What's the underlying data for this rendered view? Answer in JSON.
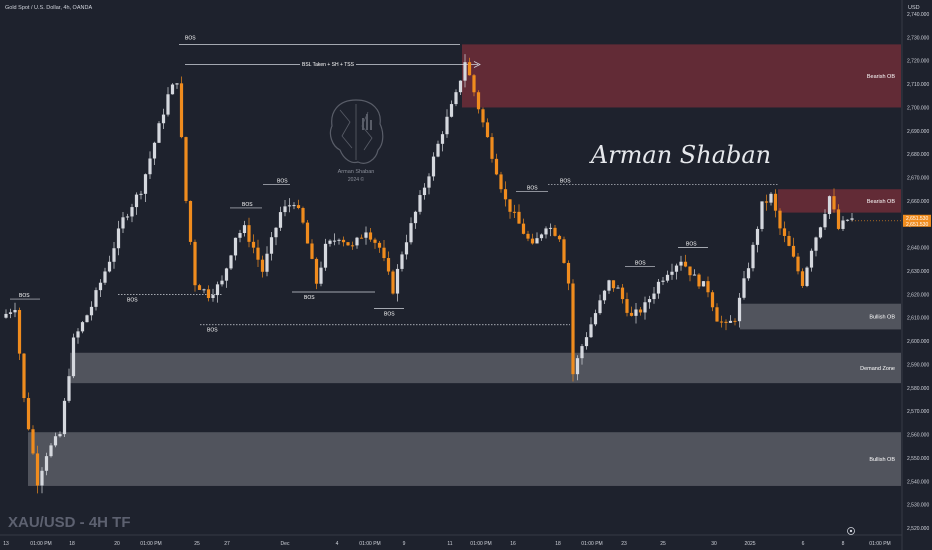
{
  "header": {
    "symbol_title": "Gold Spot / U.S. Dollar, 4h, OANDA",
    "currency": "USD"
  },
  "watermark": {
    "ticker_label": "XAU/USD - 4H TF",
    "signature": "Arman Shaban",
    "logo_text_line1": "Arman Shaban",
    "logo_text_line2": "2024 ©"
  },
  "price_axis": {
    "ticks": [
      2740,
      2730,
      2720,
      2710,
      2700,
      2690,
      2680,
      2670,
      2660,
      2650,
      2640,
      2630,
      2620,
      2610,
      2600,
      2590,
      2580,
      2570,
      2560,
      2550,
      2540,
      2530,
      2520
    ],
    "ylim": [
      2517,
      2746
    ],
    "current_price_label": "2,651.530",
    "current_price_sublabel": "2,651.530",
    "current_price": 2651.5
  },
  "time_axis": {
    "labels": [
      "13",
      "01:00 PM",
      "18",
      "20",
      "01:00 PM",
      "25",
      "27",
      "Dec",
      "4",
      "01:00 PM",
      "9",
      "11",
      "01:00 PM",
      "16",
      "18",
      "01:00 PM",
      "23",
      "25",
      "30",
      "2025",
      "6",
      "8",
      "01:00 PM"
    ]
  },
  "colors": {
    "background": "#1e222d",
    "bull": "#d5d8de",
    "bear": "#f08c1e",
    "supply": "#6e2d38",
    "demand": "#5a5d66",
    "text": "#d1d4dc",
    "current": "#f08c1e"
  },
  "chart_data": {
    "type": "candlestick",
    "title": "Gold Spot / U.S. Dollar, 4h, OANDA",
    "ylabel": "USD",
    "ylim": [
      2517,
      2746
    ],
    "path_keypoints": [
      [
        0,
        2610
      ],
      [
        3,
        2615
      ],
      [
        5,
        2575
      ],
      [
        8,
        2540
      ],
      [
        10,
        2552
      ],
      [
        13,
        2560
      ],
      [
        16,
        2600
      ],
      [
        20,
        2615
      ],
      [
        24,
        2635
      ],
      [
        27,
        2652
      ],
      [
        31,
        2665
      ],
      [
        34,
        2685
      ],
      [
        37,
        2705
      ],
      [
        39,
        2712
      ],
      [
        41,
        2660
      ],
      [
        43,
        2625
      ],
      [
        46,
        2620
      ],
      [
        49,
        2625
      ],
      [
        52,
        2645
      ],
      [
        54,
        2648
      ],
      [
        56,
        2640
      ],
      [
        58,
        2630
      ],
      [
        62,
        2655
      ],
      [
        65,
        2660
      ],
      [
        67,
        2650
      ],
      [
        70,
        2625
      ],
      [
        72,
        2640
      ],
      [
        75,
        2645
      ],
      [
        78,
        2640
      ],
      [
        81,
        2648
      ],
      [
        84,
        2640
      ],
      [
        87,
        2622
      ],
      [
        89,
        2638
      ],
      [
        92,
        2655
      ],
      [
        95,
        2672
      ],
      [
        98,
        2690
      ],
      [
        101,
        2705
      ],
      [
        103,
        2720
      ],
      [
        106,
        2700
      ],
      [
        109,
        2680
      ],
      [
        112,
        2660
      ],
      [
        115,
        2650
      ],
      [
        118,
        2640
      ],
      [
        121,
        2650
      ],
      [
        124,
        2645
      ],
      [
        126,
        2625
      ],
      [
        127,
        2586
      ],
      [
        129,
        2598
      ],
      [
        132,
        2612
      ],
      [
        135,
        2625
      ],
      [
        137,
        2622
      ],
      [
        140,
        2610
      ],
      [
        143,
        2615
      ],
      [
        146,
        2625
      ],
      [
        148,
        2630
      ],
      [
        151,
        2635
      ],
      [
        154,
        2627
      ],
      [
        157,
        2622
      ],
      [
        159,
        2610
      ],
      [
        161,
        2606
      ],
      [
        163,
        2610
      ],
      [
        165,
        2625
      ],
      [
        167,
        2640
      ],
      [
        169,
        2658
      ],
      [
        171,
        2662
      ],
      [
        173,
        2648
      ],
      [
        175,
        2640
      ],
      [
        178,
        2625
      ],
      [
        180,
        2640
      ],
      [
        182,
        2650
      ],
      [
        184,
        2662
      ],
      [
        186,
        2648
      ],
      [
        188,
        2652
      ]
    ],
    "annotations": {
      "bos_labels": [
        "BOS",
        "BOS",
        "BOS",
        "BOS",
        "BOS",
        "BOS",
        "BOS",
        "BOS",
        "BOS",
        "BOS",
        "BOS",
        "BOS"
      ],
      "bsl_label": "BSL Taken + SH + TSS",
      "zones": [
        {
          "label": "Bearish OB",
          "kind": "supply",
          "from": 2700,
          "to": 2727
        },
        {
          "label": "Bearish OB",
          "kind": "supply",
          "from": 2655,
          "to": 2665
        },
        {
          "label": "Bullish OB",
          "kind": "demand",
          "from": 2605,
          "to": 2616
        },
        {
          "label": "Demand Zone",
          "kind": "demand",
          "from": 2582,
          "to": 2595
        },
        {
          "label": "Bullish OB",
          "kind": "demand",
          "from": 2538,
          "to": 2561
        }
      ]
    }
  }
}
